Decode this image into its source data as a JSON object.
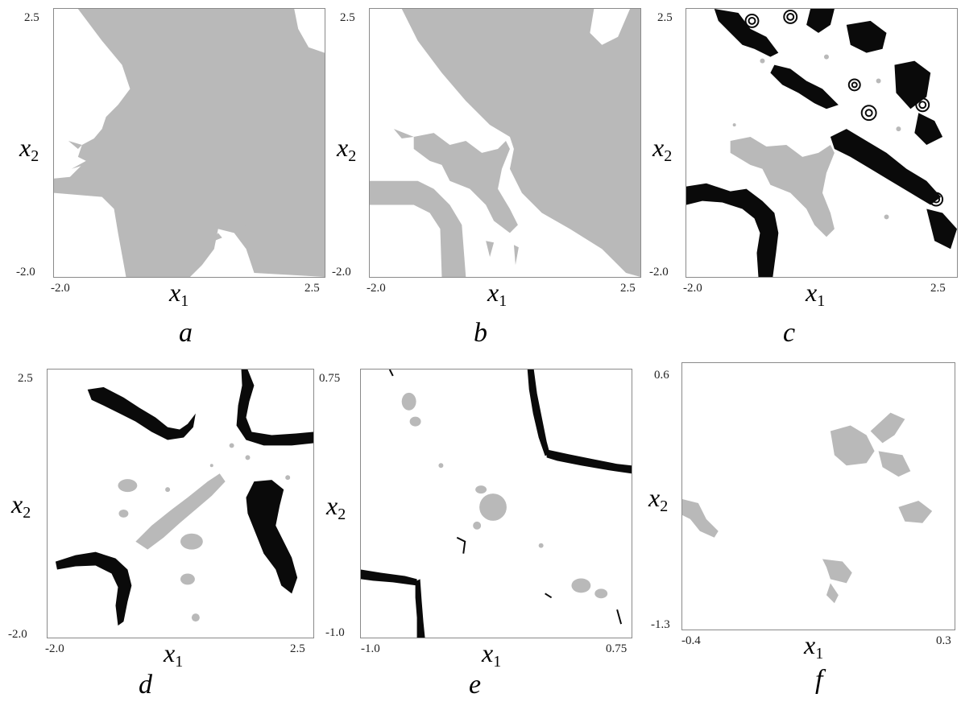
{
  "axis_symbol": "x",
  "x_axis_subscript": "1",
  "y_axis_subscript": "2",
  "panels": [
    {
      "id": "a",
      "caption": "a",
      "x_min": "-2.0",
      "x_max": "2.5",
      "y_min": "-2.0",
      "y_max": "2.5"
    },
    {
      "id": "b",
      "caption": "b",
      "x_min": "-2.0",
      "x_max": "2.5",
      "y_min": "-2.0",
      "y_max": "2.5"
    },
    {
      "id": "c",
      "caption": "c",
      "x_min": "-2.0",
      "x_max": "2.5",
      "y_min": "-2.0",
      "y_max": "2.5"
    },
    {
      "id": "d",
      "caption": "d",
      "x_min": "-2.0",
      "x_max": "2.5",
      "y_min": "-2.0",
      "y_max": "2.5"
    },
    {
      "id": "e",
      "caption": "e",
      "x_min": "-1.0",
      "x_max": "0.75",
      "y_min": "-1.0",
      "y_max": "0.75"
    },
    {
      "id": "f",
      "caption": "f",
      "x_min": "-0.4",
      "x_max": "0.3",
      "y_min": "-1.3",
      "y_max": "0.6"
    }
  ],
  "colors": {
    "basin_gray": "#b9b9b9",
    "basin_black": "#0a0a0a",
    "background": "#ffffff",
    "frame": "#8a8a8a"
  }
}
